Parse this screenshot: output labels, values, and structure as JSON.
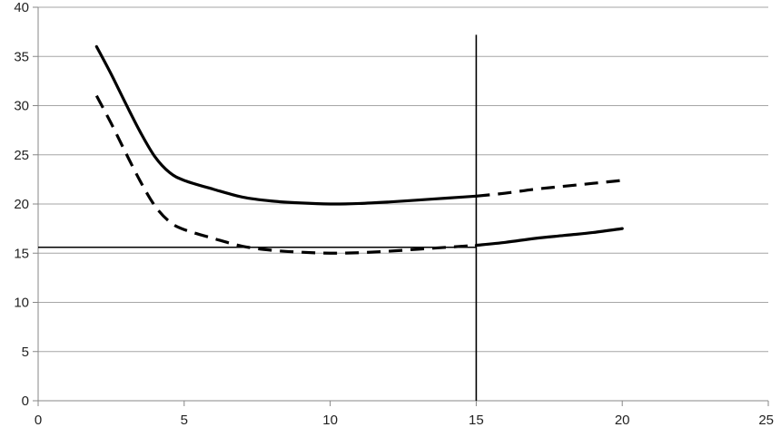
{
  "chart_data": {
    "type": "line",
    "title": "",
    "xlabel": "",
    "ylabel": "",
    "xlim": [
      0,
      25
    ],
    "ylim": [
      0,
      40
    ],
    "x_ticks": [
      0,
      5,
      10,
      15,
      20,
      25
    ],
    "y_ticks": [
      0,
      5,
      10,
      15,
      20,
      25,
      30,
      35,
      40
    ],
    "grid": "horizontal",
    "legend": "none",
    "series": [
      {
        "style": "solid-thick",
        "x": [
          2,
          2.5,
          3,
          3.5,
          4,
          4.5,
          5,
          6,
          7,
          8,
          9,
          10,
          11,
          12,
          13,
          14,
          15,
          16,
          17,
          18,
          19,
          20
        ],
        "y": [
          36,
          33.2,
          30.2,
          27.3,
          24.8,
          23.2,
          22.4,
          21.5,
          20.7,
          20.3,
          20.1,
          20.0,
          20.05,
          20.2,
          20.4,
          20.6,
          20.8,
          21.1,
          21.5,
          21.8,
          22.1,
          22.4
        ]
      },
      {
        "style": "dashed-thick",
        "x": [
          2,
          2.5,
          3,
          3.5,
          4,
          4.5,
          5,
          6,
          7,
          8,
          9,
          10,
          11,
          12,
          13,
          14,
          15,
          16,
          17,
          18,
          19,
          20
        ],
        "y": [
          31,
          28.2,
          25.2,
          22.3,
          19.8,
          18.2,
          17.4,
          16.5,
          15.7,
          15.3,
          15.1,
          15.0,
          15.05,
          15.2,
          15.4,
          15.6,
          15.8,
          16.1,
          16.5,
          16.8,
          17.1,
          17.5
        ]
      }
    ],
    "reference_lines": [
      {
        "orientation": "horizontal",
        "y": 15.6,
        "x_from": 0,
        "x_to": 15
      },
      {
        "orientation": "vertical",
        "x": 15,
        "y_from": 0,
        "y_to": 37.2
      }
    ]
  }
}
